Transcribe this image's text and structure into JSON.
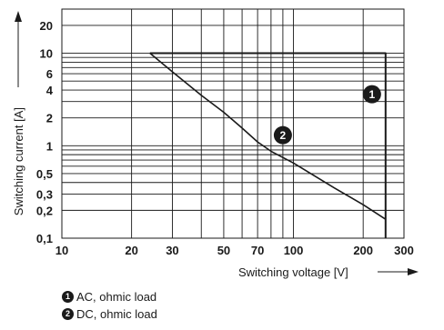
{
  "chart_data": {
    "type": "line",
    "xlabel": "Switching voltage [V]",
    "ylabel": "Switching current [A]",
    "xscale": "log",
    "yscale": "log",
    "xlim": [
      10,
      300
    ],
    "ylim": [
      0.1,
      30
    ],
    "x_ticks": [
      10,
      20,
      30,
      50,
      70,
      100,
      200,
      300
    ],
    "x_tick_labels": [
      "10",
      "20",
      "30",
      "50",
      "70",
      "100",
      "200",
      "300"
    ],
    "y_ticks": [
      0.1,
      0.2,
      0.3,
      0.5,
      1,
      2,
      4,
      6,
      10,
      20
    ],
    "y_tick_labels": [
      "0,1",
      "0,2",
      "0,3",
      "0,5",
      "1",
      "2",
      "4",
      "6",
      "10",
      "20"
    ],
    "grid": true,
    "series": [
      {
        "name": "AC, ohmic load",
        "marker": "1",
        "x": [
          24,
          250,
          250
        ],
        "y": [
          10,
          10,
          0.1
        ]
      },
      {
        "name": "DC, ohmic load",
        "marker": "2",
        "x": [
          24,
          30,
          40,
          50,
          60,
          70,
          80,
          100,
          150,
          200,
          250
        ],
        "y": [
          10,
          6.3,
          3.5,
          2.3,
          1.55,
          1.1,
          0.87,
          0.65,
          0.35,
          0.23,
          0.16
        ]
      }
    ],
    "markers": [
      {
        "label": "1",
        "x": 250,
        "y": 3.6
      },
      {
        "label": "2",
        "x": 90,
        "y": 1.3
      }
    ]
  },
  "legend": [
    {
      "badge": "1",
      "text": "AC, ohmic load"
    },
    {
      "badge": "2",
      "text": "DC, ohmic load"
    }
  ]
}
